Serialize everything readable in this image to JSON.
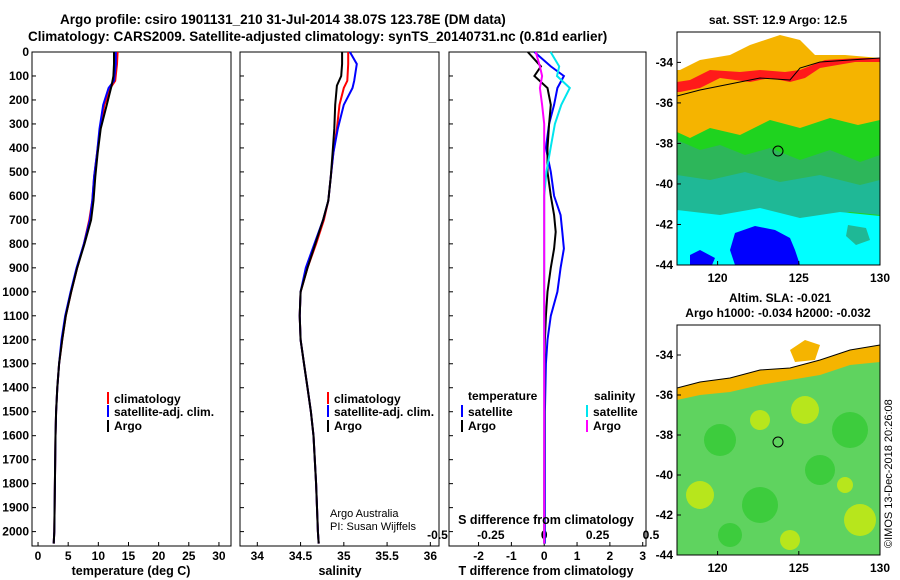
{
  "title_line1": "Argo profile: csiro 1901131_210 31-Jul-2014 38.07S 123.78E (DM data)",
  "title_line2": "Climatology: CARS2009. Satellite-adjusted climatology: synTS_20140731.nc (0.81d earlier)",
  "credit": "Argo Australia",
  "pi": "PI: Susan Wijffels",
  "watermark": "©IMOS 13-Dec-2018 20:26:08",
  "colors": {
    "clim": "#ff0000",
    "sat": "#0000ff",
    "argo": "#000000",
    "sat_s": "#00e5ee",
    "argo_s": "#ff00ff"
  },
  "chart_data": [
    {
      "type": "line",
      "xlabel": "temperature (deg C)",
      "ylabel": "",
      "xlim": [
        -1,
        32
      ],
      "ylim": [
        2060,
        0
      ],
      "xticks": [
        0,
        5,
        10,
        15,
        20,
        25,
        30
      ],
      "yticks": [
        0,
        100,
        200,
        300,
        400,
        500,
        600,
        700,
        800,
        900,
        1000,
        1100,
        1200,
        1300,
        1400,
        1500,
        1600,
        1700,
        1800,
        1900,
        2000
      ],
      "series": [
        {
          "name": "climatology",
          "color": "#ff0000",
          "x": [
            13.2,
            13.1,
            12.8,
            12.0,
            11.0,
            10.3,
            9.8,
            9.3,
            9.0,
            8.5,
            7.6,
            6.5,
            5.5,
            4.6,
            4.0,
            3.5,
            3.2,
            3.0,
            2.9,
            2.8,
            2.7,
            2.6
          ],
          "y": [
            0,
            50,
            120,
            150,
            220,
            320,
            420,
            520,
            620,
            700,
            800,
            900,
            1000,
            1100,
            1200,
            1300,
            1400,
            1500,
            1600,
            1800,
            2000,
            2050
          ]
        },
        {
          "name": "satellite-adj. clim.",
          "color": "#0000ff",
          "x": [
            12.9,
            12.9,
            12.6,
            11.7,
            10.8,
            10.2,
            9.8,
            9.3,
            9.0,
            8.6,
            7.6,
            6.4,
            5.4,
            4.5,
            3.9,
            3.5,
            3.2,
            3.0,
            2.9,
            2.8,
            2.7,
            2.6
          ],
          "y": [
            0,
            50,
            120,
            150,
            220,
            320,
            420,
            520,
            620,
            700,
            800,
            900,
            1000,
            1100,
            1200,
            1300,
            1400,
            1500,
            1600,
            1800,
            2000,
            2050
          ]
        },
        {
          "name": "Argo",
          "color": "#000000",
          "x": [
            12.6,
            12.6,
            12.5,
            12.2,
            11.4,
            10.4,
            9.9,
            9.5,
            9.2,
            8.8,
            7.7,
            6.5,
            5.5,
            4.6,
            4.0,
            3.5,
            3.2,
            3.0,
            2.9,
            2.8,
            2.7,
            2.6
          ],
          "y": [
            0,
            50,
            100,
            140,
            220,
            320,
            420,
            520,
            620,
            700,
            800,
            900,
            1000,
            1100,
            1200,
            1300,
            1400,
            1500,
            1600,
            1800,
            2000,
            2050
          ]
        }
      ]
    },
    {
      "type": "line",
      "xlabel": "salinity",
      "ylabel": "",
      "xlim": [
        33.8,
        36.1
      ],
      "ylim": [
        2060,
        0
      ],
      "xticks": [
        34,
        34.5,
        35,
        35.5,
        36
      ],
      "xticklabels": [
        "34",
        "34.5",
        "35",
        "35.5",
        "36"
      ],
      "series": [
        {
          "name": "climatology",
          "color": "#ff0000",
          "x": [
            35.05,
            35.05,
            35.04,
            35.0,
            34.95,
            34.92,
            34.88,
            34.85,
            34.82,
            34.77,
            34.68,
            34.58,
            34.5,
            34.49,
            34.5,
            34.54,
            34.58,
            34.62,
            34.65,
            34.68,
            34.7,
            34.71
          ],
          "y": [
            0,
            50,
            120,
            150,
            220,
            320,
            420,
            520,
            620,
            700,
            800,
            900,
            1000,
            1100,
            1200,
            1300,
            1400,
            1500,
            1600,
            1800,
            2000,
            2050
          ]
        },
        {
          "name": "satellite-adj. clim.",
          "color": "#0000ff",
          "x": [
            35.07,
            35.15,
            35.12,
            35.1,
            35.0,
            34.93,
            34.88,
            34.85,
            34.82,
            34.76,
            34.66,
            34.56,
            34.5,
            34.49,
            34.5,
            34.54,
            34.58,
            34.62,
            34.65,
            34.68,
            34.7,
            34.71
          ],
          "y": [
            0,
            50,
            120,
            150,
            220,
            320,
            420,
            520,
            620,
            700,
            800,
            900,
            1000,
            1100,
            1200,
            1300,
            1400,
            1500,
            1600,
            1800,
            2000,
            2050
          ]
        },
        {
          "name": "Argo",
          "color": "#000000",
          "x": [
            34.98,
            34.98,
            34.97,
            34.92,
            34.9,
            34.89,
            34.87,
            34.85,
            34.82,
            34.76,
            34.67,
            34.58,
            34.5,
            34.49,
            34.5,
            34.54,
            34.58,
            34.62,
            34.65,
            34.68,
            34.7,
            34.71
          ],
          "y": [
            0,
            50,
            100,
            140,
            220,
            320,
            420,
            520,
            620,
            700,
            800,
            900,
            1000,
            1100,
            1200,
            1300,
            1400,
            1500,
            1600,
            1800,
            2000,
            2050
          ]
        }
      ]
    },
    {
      "type": "line",
      "xlabel": "T difference from climatology",
      "ylabel": "",
      "xlim": [
        -2.9,
        3.1
      ],
      "ylim": [
        2060,
        0
      ],
      "xticks": [
        -2,
        -1,
        0,
        1,
        2,
        3
      ],
      "top_label": "S difference from climatology",
      "top_xticks": [
        -0.5,
        -0.25,
        0,
        0.25,
        0.5
      ],
      "top_xticklabels": [
        "-0.5",
        "-0.25",
        "0",
        "0.25",
        "0.5"
      ],
      "legend_left": {
        "title": "temperature",
        "entries": [
          "satellite",
          "Argo"
        ]
      },
      "legend_right": {
        "title": "salinity",
        "entries": [
          "satellite",
          "Argo"
        ]
      },
      "series": [
        {
          "name": "satellite",
          "quantity": "T",
          "color": "#0000ff",
          "x": [
            -0.3,
            0.2,
            0.6,
            0.4,
            0.3,
            0.15,
            0.05,
            0.2,
            0.3,
            0.5,
            0.55,
            0.6,
            0.5,
            0.4,
            0.2,
            0.1,
            0.05,
            0.02,
            0.02,
            0.02
          ],
          "y": [
            0,
            60,
            100,
            150,
            220,
            300,
            400,
            500,
            600,
            680,
            750,
            820,
            900,
            1000,
            1100,
            1200,
            1300,
            1500,
            1800,
            2050
          ]
        },
        {
          "name": "Argo",
          "quantity": "T",
          "color": "#000000",
          "x": [
            -0.5,
            -0.1,
            -0.3,
            0.1,
            0.2,
            0.15,
            0.1,
            0.1,
            0.2,
            0.3,
            0.35,
            0.3,
            0.2,
            0.1,
            0.05,
            0.02,
            0.01,
            0.01,
            0.0,
            0.0
          ],
          "y": [
            0,
            60,
            100,
            150,
            220,
            300,
            400,
            500,
            600,
            680,
            750,
            820,
            900,
            1000,
            1100,
            1200,
            1300,
            1500,
            1800,
            2050
          ]
        },
        {
          "name": "satellite",
          "quantity": "S",
          "color": "#00e5ee",
          "x": [
            0.03,
            0.07,
            0.06,
            0.12,
            0.08,
            0.05,
            0.03,
            0.01,
            0.0,
            0.0,
            0.0,
            0.0,
            0.0,
            0.0,
            0.0,
            0.0,
            0.0
          ],
          "y": [
            0,
            60,
            100,
            150,
            220,
            300,
            400,
            500,
            600,
            700,
            900,
            1100,
            1300,
            1500,
            1700,
            1900,
            2050
          ]
        },
        {
          "name": "Argo",
          "quantity": "S",
          "color": "#ff00ff",
          "x": [
            -0.04,
            -0.02,
            -0.01,
            -0.02,
            -0.01,
            0.0,
            0.0,
            0.0,
            0.0,
            0.0,
            0.0,
            0.0,
            0.0,
            0.0,
            0.0,
            0.0,
            0.0
          ],
          "y": [
            0,
            60,
            100,
            150,
            220,
            300,
            400,
            500,
            600,
            700,
            900,
            1100,
            1300,
            1500,
            1700,
            1900,
            2050
          ]
        }
      ]
    },
    {
      "type": "heatmap",
      "title": "sat. SST: 12.9 Argo: 12.5",
      "xlim": [
        117.5,
        130
      ],
      "ylim": [
        -44,
        -32.5
      ],
      "xticks": [
        120,
        125,
        130
      ],
      "yticks": [
        -34,
        -36,
        -38,
        -40,
        -42,
        -44
      ],
      "marker": {
        "lon": 123.78,
        "lat": -38.07
      }
    },
    {
      "type": "heatmap",
      "title": "Altim. SLA: -0.021",
      "subtitle": "Argo h1000: -0.034 h2000: -0.032",
      "xlim": [
        117.5,
        130
      ],
      "ylim": [
        -44,
        -32.5
      ],
      "xticks": [
        120,
        125,
        130
      ],
      "yticks": [
        -34,
        -36,
        -38,
        -40,
        -42,
        -44
      ],
      "marker": {
        "lon": 123.78,
        "lat": -38.07
      }
    }
  ]
}
